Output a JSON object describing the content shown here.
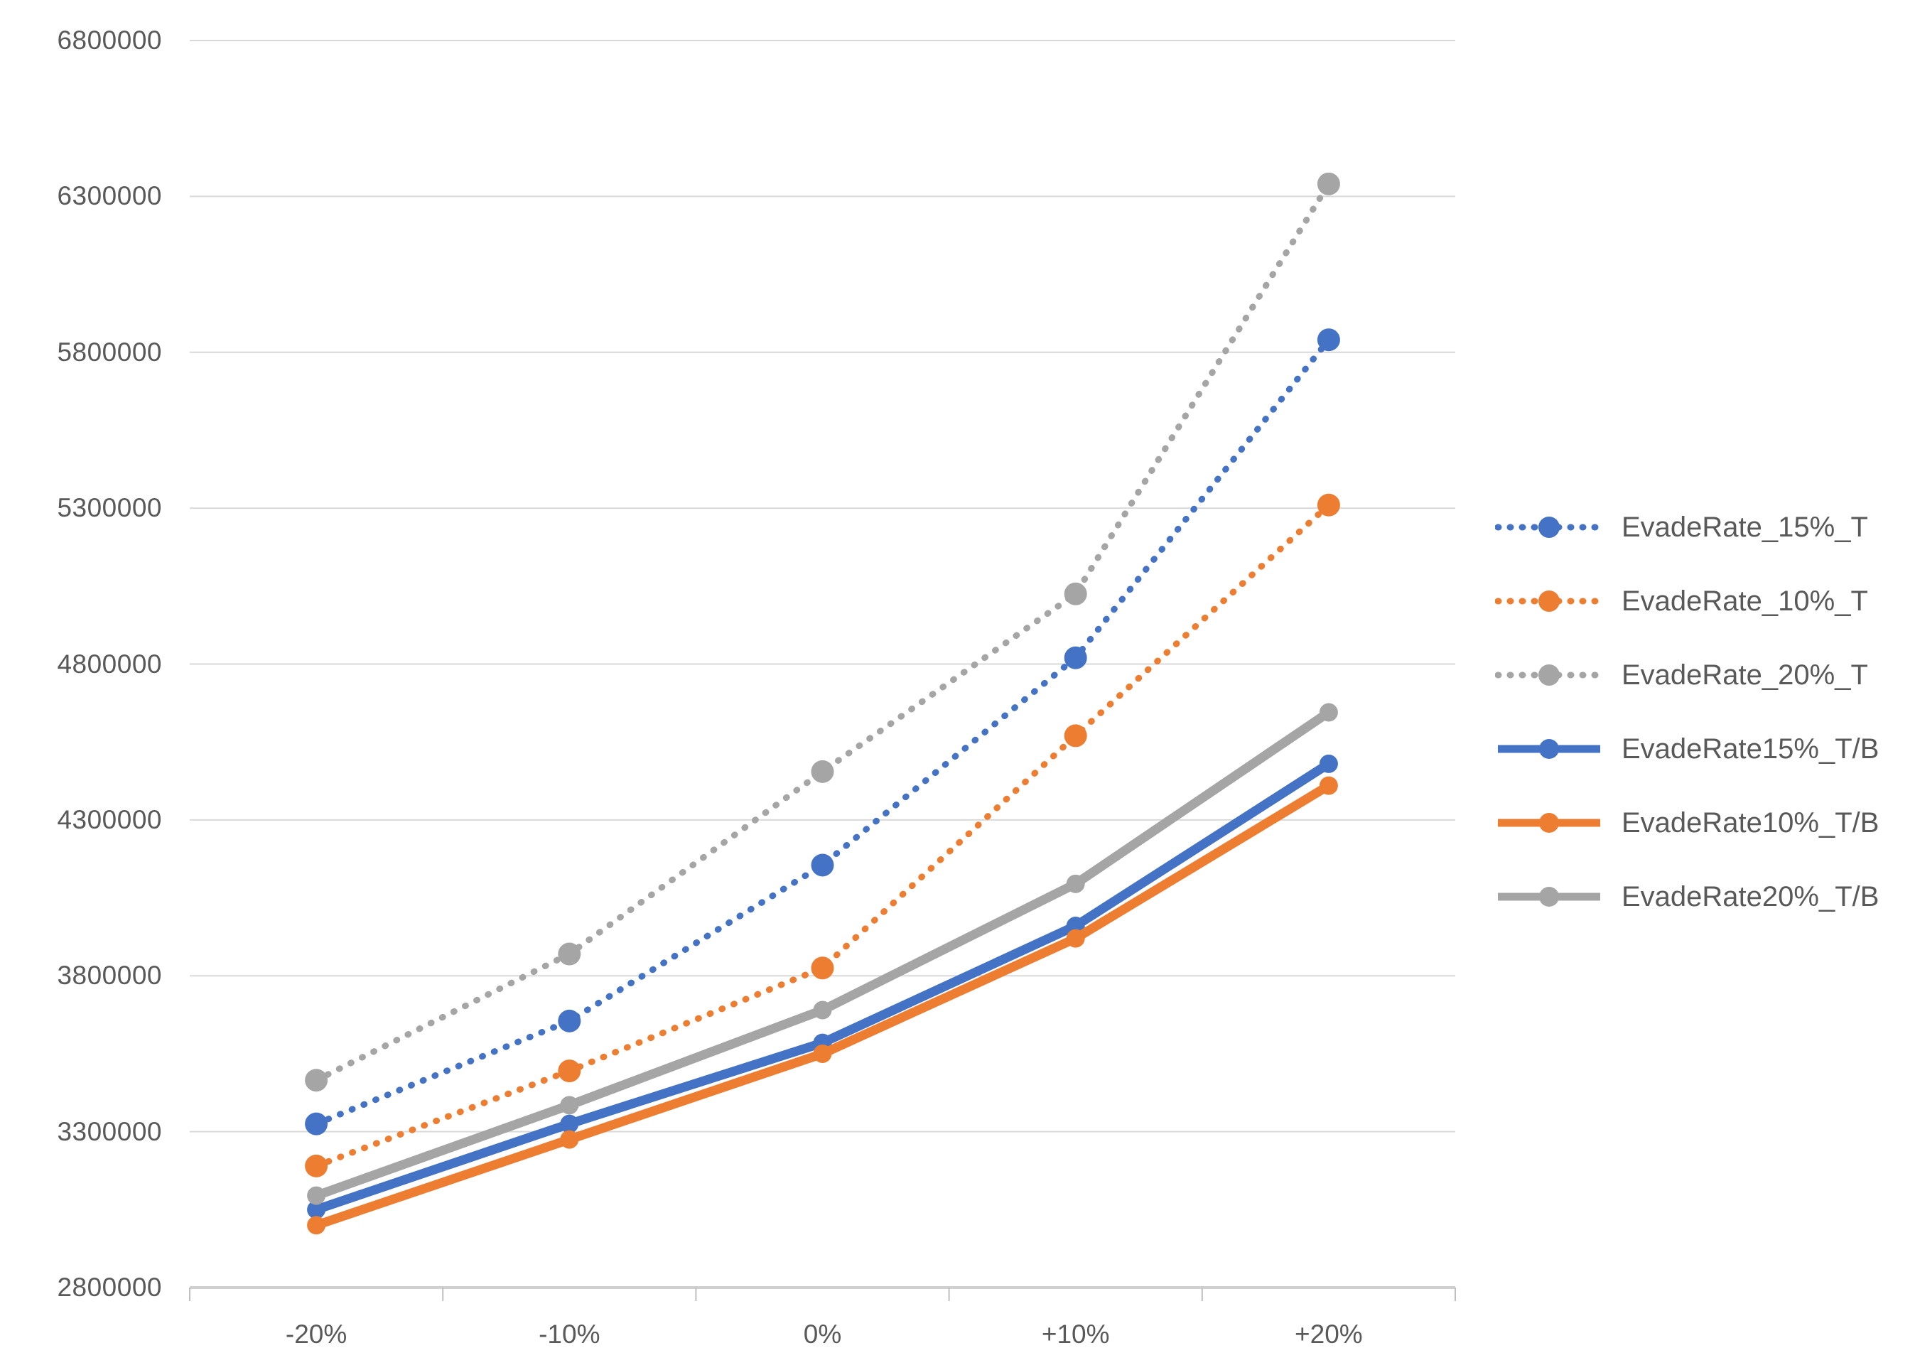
{
  "chart_data": {
    "type": "line",
    "title": "",
    "xlabel": "",
    "ylabel": "",
    "categories": [
      "-20%",
      "-10%",
      "0%",
      "+10%",
      "+20%"
    ],
    "y_tick_labels": [
      "6800000",
      "6300000",
      "5800000",
      "5300000",
      "4800000",
      "4300000",
      "3800000",
      "3300000",
      "2800000"
    ],
    "ylim": [
      2800000,
      6800000
    ],
    "ytick_step": 500000,
    "grid": "horizontal",
    "legend_position": "right",
    "series": [
      {
        "name": "EvadeRate_15%_T",
        "color": "#4472C4",
        "line_style": "dotted",
        "marker": "circle",
        "values": [
          3325000,
          3655000,
          4155000,
          4820000,
          5840000
        ]
      },
      {
        "name": "EvadeRate_10%_T",
        "color": "#ED7D31",
        "line_style": "dotted",
        "marker": "circle",
        "values": [
          3190000,
          3495000,
          3825000,
          4570000,
          5310000
        ]
      },
      {
        "name": "EvadeRate_20%_T",
        "color": "#A5A5A5",
        "line_style": "dotted",
        "marker": "circle",
        "values": [
          3465000,
          3870000,
          4455000,
          5025000,
          6340000
        ]
      },
      {
        "name": "EvadeRate15%_T/B",
        "color": "#4472C4",
        "line_style": "solid",
        "marker": "circle",
        "values": [
          3050000,
          3325000,
          3585000,
          3960000,
          4480000
        ]
      },
      {
        "name": "EvadeRate10%_T/B",
        "color": "#ED7D31",
        "line_style": "solid",
        "marker": "circle",
        "values": [
          3000000,
          3275000,
          3550000,
          3920000,
          4410000
        ]
      },
      {
        "name": "EvadeRate20%_T/B",
        "color": "#A5A5A5",
        "line_style": "solid",
        "marker": "circle",
        "values": [
          3095000,
          3385000,
          3690000,
          4095000,
          4645000
        ]
      }
    ],
    "colors": {
      "gridline": "#D9D9D9",
      "axis_line": "#D0D0D0",
      "tick_mark": "#BFBFBF",
      "label_text": "#595959",
      "background": "#FFFFFF"
    }
  }
}
